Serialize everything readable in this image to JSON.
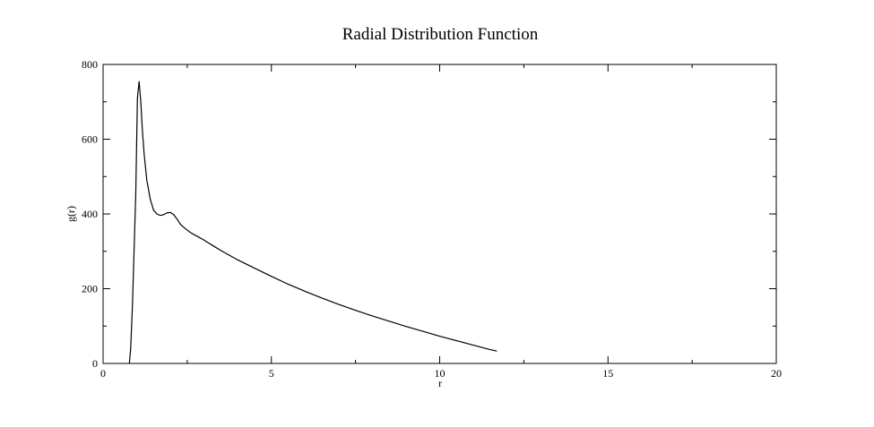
{
  "chart_data": {
    "type": "line",
    "title": "Radial Distribution Function",
    "xlabel": "r",
    "ylabel": "g(r)",
    "xlim": [
      0,
      20
    ],
    "ylim": [
      0,
      800
    ],
    "xticks": [
      0,
      5,
      10,
      15,
      20
    ],
    "yticks": [
      0,
      200,
      400,
      600,
      800
    ],
    "x_minor_step": 2.5,
    "y_minor_step": 100,
    "grid": false,
    "legend": "none",
    "line_color": "#000000",
    "series": [
      {
        "x": [
          0.78,
          0.82,
          0.87,
          0.92,
          0.97,
          1.02,
          1.07,
          1.12,
          1.17,
          1.22,
          1.3,
          1.4,
          1.5,
          1.6,
          1.7,
          1.8,
          1.9,
          2.0,
          2.1,
          2.2,
          2.3,
          2.45,
          2.6,
          2.8,
          3.0,
          3.3,
          3.6,
          4.0,
          4.5,
          5.0,
          5.5,
          6.0,
          6.5,
          7.0,
          7.5,
          8.0,
          8.5,
          9.0,
          9.5,
          10.0,
          10.5,
          11.0,
          11.5,
          11.7
        ],
        "y": [
          0,
          40,
          150,
          300,
          450,
          710,
          755,
          700,
          620,
          560,
          490,
          440,
          410,
          400,
          396,
          398,
          403,
          404,
          398,
          386,
          372,
          360,
          350,
          340,
          330,
          313,
          297,
          277,
          255,
          233,
          212,
          193,
          175,
          158,
          142,
          127,
          113,
          99,
          86,
          73,
          61,
          49,
          37,
          33
        ]
      }
    ]
  }
}
